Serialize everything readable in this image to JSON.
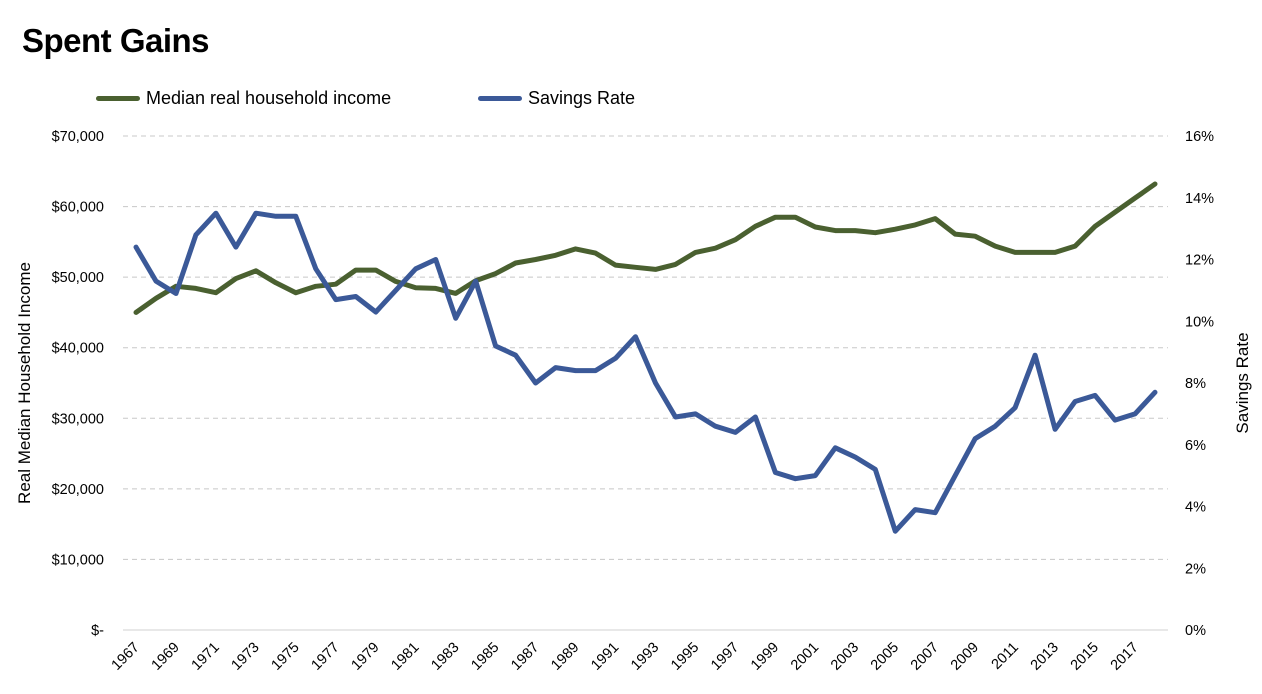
{
  "chart_data": {
    "type": "line",
    "title": "Spent Gains",
    "xlabel": "",
    "ylabel_left": "Real Median Household Income",
    "ylabel_right": "Savings Rate",
    "ylim_left": [
      0,
      70000
    ],
    "ylim_right": [
      0,
      16
    ],
    "grid": true,
    "legend_position": "top-left",
    "x": [
      1967,
      1968,
      1969,
      1970,
      1971,
      1972,
      1973,
      1974,
      1975,
      1976,
      1977,
      1978,
      1979,
      1980,
      1981,
      1982,
      1983,
      1984,
      1985,
      1986,
      1987,
      1988,
      1989,
      1990,
      1991,
      1992,
      1993,
      1994,
      1995,
      1996,
      1997,
      1998,
      1999,
      2000,
      2001,
      2002,
      2003,
      2004,
      2005,
      2006,
      2007,
      2008,
      2009,
      2010,
      2011,
      2012,
      2013,
      2014,
      2015,
      2016,
      2017,
      2018
    ],
    "x_tick_labels": [
      "1967",
      "1969",
      "1971",
      "1973",
      "1975",
      "1977",
      "1979",
      "1981",
      "1983",
      "1985",
      "1987",
      "1989",
      "1991",
      "1993",
      "1995",
      "1997",
      "1999",
      "2001",
      "2003",
      "2005",
      "2007",
      "2009",
      "2011",
      "2013",
      "2015",
      "2017"
    ],
    "y_left_tick_labels": [
      "$-",
      "$10,000",
      "$20,000",
      "$30,000",
      "$40,000",
      "$50,000",
      "$60,000",
      "$70,000"
    ],
    "y_right_tick_labels": [
      "0%",
      "2%",
      "4%",
      "6%",
      "8%",
      "10%",
      "12%",
      "14%",
      "16%"
    ],
    "series": [
      {
        "name": "Median real household income",
        "axis": "left",
        "color": "#4a6030",
        "values": [
          45000,
          47000,
          48700,
          48400,
          47800,
          49800,
          50900,
          49200,
          47800,
          48700,
          49000,
          51000,
          51000,
          49400,
          48500,
          48400,
          47700,
          49500,
          50500,
          52000,
          52500,
          53100,
          54000,
          53400,
          51700,
          51400,
          51100,
          51800,
          53500,
          54100,
          55300,
          57200,
          58500,
          58500,
          57100,
          56600,
          56600,
          56300,
          56800,
          57400,
          58300,
          56100,
          55800,
          54400,
          53500,
          53500,
          53500,
          54400,
          57200,
          59200,
          61200,
          63200
        ]
      },
      {
        "name": "Savings Rate",
        "axis": "right",
        "color": "#3b5998",
        "values": [
          12.4,
          11.3,
          10.9,
          12.8,
          13.5,
          12.4,
          13.5,
          13.4,
          13.4,
          11.7,
          10.7,
          10.8,
          10.3,
          11.0,
          11.7,
          12.0,
          10.1,
          11.3,
          9.2,
          8.9,
          8.0,
          8.5,
          8.4,
          8.4,
          8.8,
          9.5,
          8.0,
          6.9,
          7.0,
          6.6,
          6.4,
          6.9,
          5.1,
          4.9,
          5.0,
          5.9,
          5.6,
          5.2,
          3.2,
          3.9,
          3.8,
          5.0,
          6.2,
          6.6,
          7.2,
          8.9,
          6.5,
          7.4,
          7.6,
          6.8,
          7.0,
          7.7
        ]
      }
    ]
  }
}
